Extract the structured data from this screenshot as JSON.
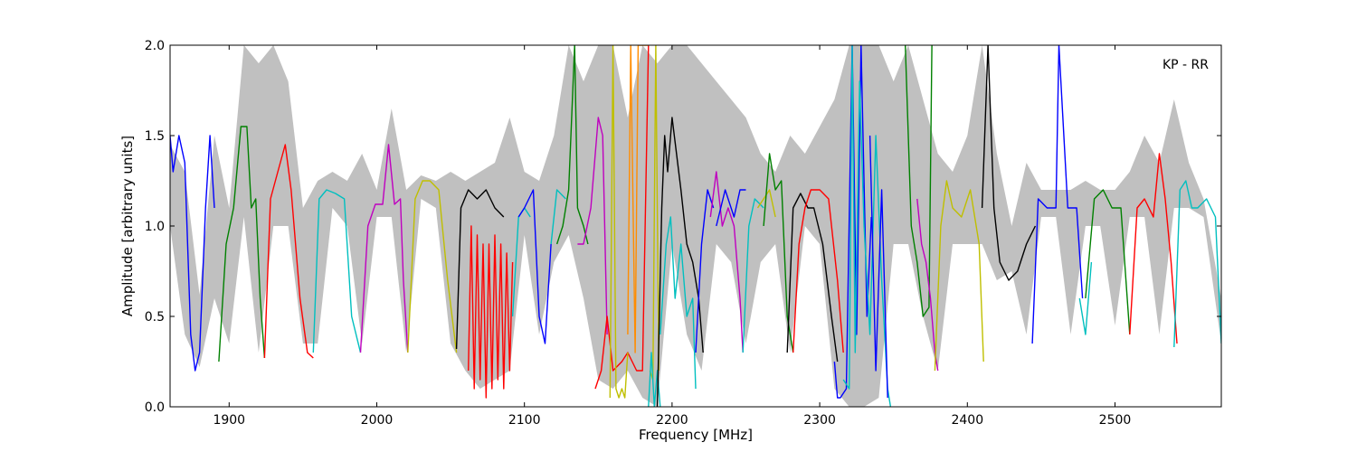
{
  "chart_data": {
    "type": "line",
    "annotation": "KP - RR",
    "xlabel": "Frequency [MHz]",
    "ylabel": "Amplitude [arbitrary units]",
    "xlim": [
      1860,
      2572
    ],
    "ylim": [
      0.0,
      2.0
    ],
    "xticks": [
      1900,
      2000,
      2100,
      2200,
      2300,
      2400,
      2500
    ],
    "yticks": [
      0.0,
      0.5,
      1.0,
      1.5,
      2.0
    ],
    "xtick_labels": [
      "1900",
      "2000",
      "2100",
      "2200",
      "2300",
      "2400",
      "2500"
    ],
    "ytick_labels": [
      "0.0",
      "0.5",
      "1.0",
      "1.5",
      "2.0"
    ],
    "grid": false,
    "envelope": {
      "color": "#c0c0c0",
      "x": [
        1860,
        1870,
        1880,
        1890,
        1900,
        1910,
        1920,
        1930,
        1940,
        1950,
        1960,
        1970,
        1980,
        1990,
        2000,
        2010,
        2020,
        2030,
        2040,
        2050,
        2060,
        2070,
        2080,
        2090,
        2100,
        2110,
        2120,
        2130,
        2140,
        2150,
        2160,
        2170,
        2180,
        2190,
        2200,
        2210,
        2220,
        2230,
        2240,
        2250,
        2260,
        2270,
        2280,
        2290,
        2300,
        2310,
        2320,
        2330,
        2340,
        2350,
        2360,
        2370,
        2380,
        2390,
        2400,
        2410,
        2420,
        2430,
        2440,
        2450,
        2460,
        2470,
        2480,
        2490,
        2500,
        2510,
        2520,
        2530,
        2540,
        2550,
        2560,
        2572
      ],
      "upper": [
        1.45,
        1.3,
        0.62,
        1.5,
        1.1,
        2.0,
        1.9,
        2.0,
        1.8,
        1.1,
        1.25,
        1.3,
        1.25,
        1.4,
        1.2,
        1.65,
        1.2,
        1.28,
        1.25,
        1.3,
        1.25,
        1.3,
        1.35,
        1.6,
        1.3,
        1.25,
        1.5,
        2.0,
        1.8,
        2.0,
        2.0,
        1.6,
        2.0,
        1.9,
        2.0,
        2.0,
        1.9,
        1.8,
        1.7,
        1.6,
        1.4,
        1.3,
        1.5,
        1.4,
        1.55,
        1.7,
        2.0,
        2.0,
        2.0,
        1.8,
        2.0,
        1.7,
        1.4,
        1.3,
        1.5,
        2.0,
        1.4,
        1.0,
        1.35,
        1.2,
        1.2,
        1.2,
        1.25,
        1.2,
        1.2,
        1.3,
        1.5,
        1.35,
        1.7,
        1.35,
        1.15,
        0.6
      ],
      "lower": [
        1.0,
        0.4,
        0.22,
        0.6,
        0.35,
        1.05,
        0.3,
        1.0,
        1.0,
        0.35,
        0.35,
        1.1,
        1.0,
        0.35,
        1.05,
        1.05,
        0.3,
        1.15,
        1.1,
        0.35,
        0.2,
        0.1,
        0.15,
        0.2,
        0.95,
        0.4,
        0.8,
        0.95,
        0.6,
        0.15,
        0.1,
        0.2,
        0.05,
        0.0,
        0.9,
        0.4,
        0.2,
        0.9,
        0.8,
        0.35,
        0.8,
        0.9,
        0.3,
        1.0,
        0.9,
        0.1,
        0.0,
        0.0,
        0.05,
        0.9,
        0.9,
        0.5,
        0.2,
        0.9,
        0.9,
        0.9,
        0.7,
        0.75,
        0.4,
        1.05,
        1.05,
        0.4,
        1.0,
        1.0,
        0.45,
        1.05,
        1.05,
        0.4,
        1.1,
        1.1,
        1.05,
        0.35
      ]
    },
    "series": [
      {
        "color": "#0000ff",
        "x": [
          1860,
          1862,
          1866,
          1870,
          1874,
          1877,
          1880,
          1884,
          1887,
          1890
        ],
        "y": [
          1.5,
          1.3,
          1.5,
          1.35,
          0.4,
          0.2,
          0.3,
          1.1,
          1.5,
          1.1
        ]
      },
      {
        "color": "#008000",
        "x": [
          1893,
          1898,
          1903,
          1908,
          1912,
          1915,
          1918,
          1921,
          1924
        ],
        "y": [
          0.25,
          0.9,
          1.1,
          1.55,
          1.55,
          1.1,
          1.15,
          0.6,
          0.27
        ]
      },
      {
        "color": "#ff0000",
        "x": [
          1924,
          1928,
          1933,
          1938,
          1942,
          1948,
          1953,
          1957
        ],
        "y": [
          0.27,
          1.15,
          1.3,
          1.45,
          1.2,
          0.6,
          0.3,
          0.27
        ]
      },
      {
        "color": "#00bfbf",
        "x": [
          1957,
          1961,
          1966,
          1972,
          1978,
          1983,
          1989
        ],
        "y": [
          0.3,
          1.15,
          1.2,
          1.18,
          1.15,
          0.5,
          0.3
        ]
      },
      {
        "color": "#bf00bf",
        "x": [
          1989,
          1994,
          1999,
          2004,
          2008,
          2012,
          2016,
          2018,
          2021
        ],
        "y": [
          0.3,
          1.0,
          1.12,
          1.12,
          1.45,
          1.12,
          1.15,
          0.7,
          0.3
        ]
      },
      {
        "color": "#bfbf00",
        "x": [
          2021,
          2026,
          2031,
          2036,
          2042,
          2048,
          2054
        ],
        "y": [
          0.3,
          1.15,
          1.25,
          1.25,
          1.2,
          0.7,
          0.3
        ]
      },
      {
        "color": "#000000",
        "x": [
          2054,
          2057,
          2062,
          2068,
          2074,
          2080,
          2086
        ],
        "y": [
          0.32,
          1.1,
          1.2,
          1.15,
          1.2,
          1.1,
          1.05
        ]
      },
      {
        "color": "#ff0000",
        "x": [
          2062,
          2064,
          2066,
          2068,
          2070,
          2072,
          2074,
          2076,
          2078,
          2080,
          2082,
          2084,
          2086,
          2088,
          2090,
          2092
        ],
        "y": [
          0.2,
          1.0,
          0.1,
          0.95,
          0.15,
          0.9,
          0.05,
          0.9,
          0.1,
          0.95,
          0.15,
          0.9,
          0.1,
          0.85,
          0.2,
          0.8
        ]
      },
      {
        "color": "#00bfbf",
        "x": [
          2092,
          2096,
          2100,
          2104
        ],
        "y": [
          0.5,
          1.05,
          1.1,
          1.05
        ]
      },
      {
        "color": "#0000ff",
        "x": [
          2096,
          2100,
          2106,
          2110,
          2114,
          2118
        ],
        "y": [
          1.05,
          1.1,
          1.2,
          0.5,
          0.35,
          0.9
        ]
      },
      {
        "color": "#00bfbf",
        "x": [
          2118,
          2122,
          2128
        ],
        "y": [
          0.9,
          1.2,
          1.15
        ]
      },
      {
        "color": "#008000",
        "x": [
          2122,
          2126,
          2130,
          2134,
          2136,
          2138,
          2140,
          2143
        ],
        "y": [
          0.9,
          1.0,
          1.2,
          2.0,
          1.1,
          1.05,
          1.0,
          0.9
        ]
      },
      {
        "color": "#bf00bf",
        "x": [
          2136,
          2140,
          2145,
          2150,
          2153,
          2156
        ],
        "y": [
          0.9,
          0.9,
          1.1,
          1.6,
          1.5,
          0.4
        ]
      },
      {
        "color": "#ff0000",
        "x": [
          2148,
          2152,
          2156,
          2160,
          2166,
          2170,
          2176,
          2180,
          2184
        ],
        "y": [
          0.1,
          0.2,
          0.5,
          0.2,
          0.25,
          0.3,
          0.2,
          0.2,
          2.0
        ]
      },
      {
        "color": "#bfbf00",
        "x": [
          2158,
          2160,
          2162,
          2164,
          2166,
          2168,
          2170
        ],
        "y": [
          0.05,
          2.0,
          0.1,
          0.05,
          0.1,
          0.05,
          0.3
        ]
      },
      {
        "color": "#ff8c00",
        "x": [
          2170,
          2172,
          2175,
          2177,
          2180,
          2184
        ],
        "y": [
          0.4,
          2.0,
          0.3,
          2.0,
          2.0,
          2.0
        ]
      },
      {
        "color": "#bfbf00",
        "x": [
          2185,
          2187,
          2189,
          2191
        ],
        "y": [
          0.2,
          0.15,
          2.0,
          0.2
        ]
      },
      {
        "color": "#00bfbf",
        "x": [
          2184,
          2186,
          2188,
          2190,
          2192
        ],
        "y": [
          0.0,
          0.3,
          0.0,
          0.2,
          0.0
        ]
      },
      {
        "color": "#000000",
        "x": [
          2190,
          2193,
          2195,
          2197,
          2200,
          2203,
          2206,
          2210,
          2214,
          2218,
          2221
        ],
        "y": [
          0.0,
          1.1,
          1.5,
          1.3,
          1.6,
          1.4,
          1.2,
          0.9,
          0.8,
          0.6,
          0.3
        ]
      },
      {
        "color": "#00bfbf",
        "x": [
          2192,
          2196,
          2199,
          2202,
          2206,
          2210,
          2214,
          2216
        ],
        "y": [
          0.4,
          0.9,
          1.05,
          0.6,
          0.9,
          0.5,
          0.6,
          0.1
        ]
      },
      {
        "color": "#0000ff",
        "x": [
          2216,
          2220,
          2224,
          2228
        ],
        "y": [
          0.3,
          0.9,
          1.2,
          1.1
        ]
      },
      {
        "color": "#bf00bf",
        "x": [
          2226,
          2230,
          2234,
          2238,
          2242,
          2246,
          2248
        ],
        "y": [
          1.05,
          1.3,
          1.0,
          1.1,
          1.0,
          0.6,
          0.3
        ]
      },
      {
        "color": "#0000ff",
        "x": [
          2230,
          2236,
          2242,
          2246,
          2250
        ],
        "y": [
          1.0,
          1.2,
          1.05,
          1.2,
          1.2
        ]
      },
      {
        "color": "#00bfbf",
        "x": [
          2248,
          2252,
          2256,
          2262
        ],
        "y": [
          0.3,
          1.0,
          1.15,
          1.1
        ]
      },
      {
        "color": "#bfbf00",
        "x": [
          2258,
          2262,
          2266,
          2270
        ],
        "y": [
          1.1,
          1.15,
          1.2,
          1.05
        ]
      },
      {
        "color": "#008000",
        "x": [
          2262,
          2266,
          2270,
          2274,
          2278,
          2282
        ],
        "y": [
          1.0,
          1.4,
          1.2,
          1.25,
          0.5,
          0.3
        ]
      },
      {
        "color": "#000000",
        "x": [
          2278,
          2282,
          2287,
          2292,
          2296,
          2302,
          2308,
          2312
        ],
        "y": [
          0.3,
          1.1,
          1.18,
          1.1,
          1.1,
          0.9,
          0.5,
          0.25
        ]
      },
      {
        "color": "#ff0000",
        "x": [
          2282,
          2286,
          2290,
          2294,
          2300,
          2306,
          2312,
          2316
        ],
        "y": [
          0.3,
          0.9,
          1.1,
          1.2,
          1.2,
          1.15,
          0.7,
          0.3
        ]
      },
      {
        "color": "#0000ff",
        "x": [
          2310,
          2312,
          2314,
          2318,
          2322,
          2325,
          2328,
          2332,
          2335
        ],
        "y": [
          0.25,
          0.05,
          0.05,
          0.1,
          2.0,
          0.4,
          2.0,
          0.5,
          1.05
        ]
      },
      {
        "color": "#00bfbf",
        "x": [
          2316,
          2320,
          2322,
          2324,
          2327,
          2330,
          2334,
          2338,
          2342,
          2346,
          2348
        ],
        "y": [
          0.15,
          0.1,
          2.0,
          0.3,
          1.8,
          1.0,
          0.4,
          1.5,
          0.7,
          0.1,
          0.0
        ]
      },
      {
        "color": "#0000ff",
        "x": [
          2334,
          2338,
          2342,
          2346
        ],
        "y": [
          1.5,
          0.2,
          1.2,
          0.05
        ]
      },
      {
        "color": "#008000",
        "x": [
          2358,
          2362,
          2366,
          2370,
          2374,
          2376
        ],
        "y": [
          2.0,
          1.0,
          0.8,
          0.5,
          0.55,
          2.0
        ]
      },
      {
        "color": "#bf00bf",
        "x": [
          2366,
          2369,
          2372,
          2375,
          2378,
          2380
        ],
        "y": [
          1.15,
          0.9,
          0.8,
          0.6,
          0.3,
          0.2
        ]
      },
      {
        "color": "#bfbf00",
        "x": [
          2378,
          2382,
          2386,
          2390,
          2396,
          2402,
          2408,
          2411
        ],
        "y": [
          0.2,
          1.0,
          1.25,
          1.1,
          1.05,
          1.2,
          0.9,
          0.25
        ]
      },
      {
        "color": "#000000",
        "x": [
          2410,
          2414,
          2418,
          2422,
          2428,
          2434,
          2440,
          2446
        ],
        "y": [
          1.1,
          2.0,
          1.1,
          0.8,
          0.7,
          0.75,
          0.9,
          1.0
        ]
      },
      {
        "color": "#0000ff",
        "x": [
          2444,
          2448,
          2454,
          2460,
          2462,
          2468,
          2474,
          2478
        ],
        "y": [
          0.35,
          1.15,
          1.1,
          1.1,
          2.0,
          1.1,
          1.1,
          0.6
        ]
      },
      {
        "color": "#00bfbf",
        "x": [
          2476,
          2480,
          2484
        ],
        "y": [
          0.6,
          0.4,
          0.8
        ]
      },
      {
        "color": "#008000",
        "x": [
          2480,
          2486,
          2492,
          2498,
          2504,
          2510
        ],
        "y": [
          0.6,
          1.15,
          1.2,
          1.1,
          1.1,
          0.4
        ]
      },
      {
        "color": "#ff0000",
        "x": [
          2510,
          2515,
          2520,
          2526,
          2530,
          2534,
          2538,
          2542
        ],
        "y": [
          0.4,
          1.1,
          1.15,
          1.05,
          1.4,
          1.15,
          0.8,
          0.35
        ]
      },
      {
        "color": "#00bfbf",
        "x": [
          2540,
          2544,
          2548,
          2552,
          2556,
          2562,
          2568,
          2572
        ],
        "y": [
          0.33,
          1.2,
          1.25,
          1.1,
          1.1,
          1.15,
          1.05,
          0.35
        ]
      }
    ]
  }
}
